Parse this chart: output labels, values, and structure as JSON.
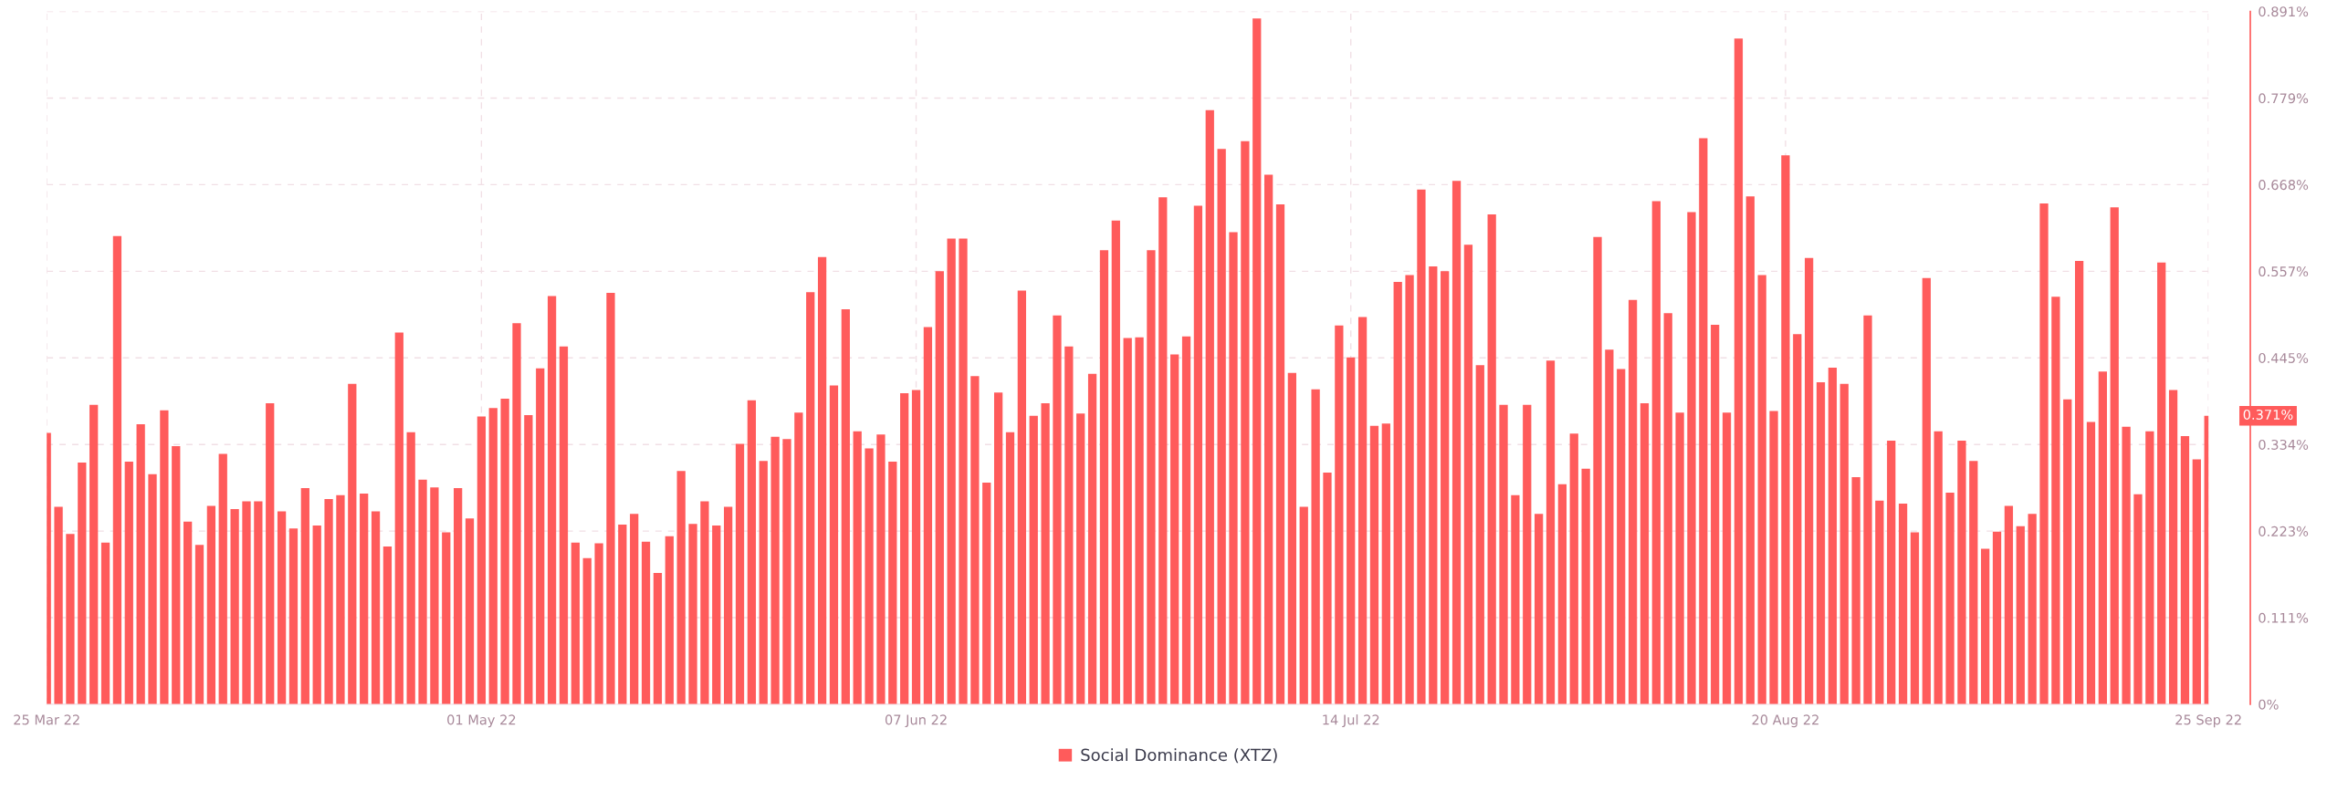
{
  "chart_data": {
    "type": "bar",
    "x": [
      "2022-03-25",
      "2022-03-26",
      "2022-03-27",
      "2022-03-28",
      "2022-03-29",
      "2022-03-30",
      "2022-03-31",
      "2022-04-01",
      "2022-04-02",
      "2022-04-03",
      "2022-04-04",
      "2022-04-05",
      "2022-04-06",
      "2022-04-07",
      "2022-04-08",
      "2022-04-09",
      "2022-04-10",
      "2022-04-11",
      "2022-04-12",
      "2022-04-13",
      "2022-04-14",
      "2022-04-15",
      "2022-04-16",
      "2022-04-17",
      "2022-04-18",
      "2022-04-19",
      "2022-04-20",
      "2022-04-21",
      "2022-04-22",
      "2022-04-23",
      "2022-04-24",
      "2022-04-25",
      "2022-04-26",
      "2022-04-27",
      "2022-04-28",
      "2022-04-29",
      "2022-04-30",
      "2022-05-01",
      "2022-05-02",
      "2022-05-03",
      "2022-05-04",
      "2022-05-05",
      "2022-05-06",
      "2022-05-07",
      "2022-05-08",
      "2022-05-09",
      "2022-05-10",
      "2022-05-11",
      "2022-05-12",
      "2022-05-13",
      "2022-05-14",
      "2022-05-15",
      "2022-05-16",
      "2022-05-17",
      "2022-05-18",
      "2022-05-19",
      "2022-05-20",
      "2022-05-21",
      "2022-05-22",
      "2022-05-23",
      "2022-05-24",
      "2022-05-25",
      "2022-05-26",
      "2022-05-27",
      "2022-05-28",
      "2022-05-29",
      "2022-05-30",
      "2022-05-31",
      "2022-06-01",
      "2022-06-02",
      "2022-06-03",
      "2022-06-04",
      "2022-06-05",
      "2022-06-06",
      "2022-06-07",
      "2022-06-08",
      "2022-06-09",
      "2022-06-10",
      "2022-06-11",
      "2022-06-12",
      "2022-06-13",
      "2022-06-14",
      "2022-06-15",
      "2022-06-16",
      "2022-06-17",
      "2022-06-18",
      "2022-06-19",
      "2022-06-20",
      "2022-06-21",
      "2022-06-22",
      "2022-06-23",
      "2022-06-24",
      "2022-06-25",
      "2022-06-26",
      "2022-06-27",
      "2022-06-28",
      "2022-06-29",
      "2022-06-30",
      "2022-07-01",
      "2022-07-02",
      "2022-07-03",
      "2022-07-04",
      "2022-07-05",
      "2022-07-06",
      "2022-07-07",
      "2022-07-08",
      "2022-07-09",
      "2022-07-10",
      "2022-07-11",
      "2022-07-12",
      "2022-07-13",
      "2022-07-14",
      "2022-07-15",
      "2022-07-16",
      "2022-07-17",
      "2022-07-18",
      "2022-07-19",
      "2022-07-20",
      "2022-07-21",
      "2022-07-22",
      "2022-07-23",
      "2022-07-24",
      "2022-07-25",
      "2022-07-26",
      "2022-07-27",
      "2022-07-28",
      "2022-07-29",
      "2022-07-30",
      "2022-07-31",
      "2022-08-01",
      "2022-08-02",
      "2022-08-03",
      "2022-08-04",
      "2022-08-05",
      "2022-08-06",
      "2022-08-07",
      "2022-08-08",
      "2022-08-09",
      "2022-08-10",
      "2022-08-11",
      "2022-08-12",
      "2022-08-13",
      "2022-08-14",
      "2022-08-15",
      "2022-08-16",
      "2022-08-17",
      "2022-08-18",
      "2022-08-19",
      "2022-08-20",
      "2022-08-21",
      "2022-08-22",
      "2022-08-23",
      "2022-08-24",
      "2022-08-25",
      "2022-08-26",
      "2022-08-27",
      "2022-08-28",
      "2022-08-29",
      "2022-08-30",
      "2022-08-31",
      "2022-09-01",
      "2022-09-02",
      "2022-09-03",
      "2022-09-04",
      "2022-09-05",
      "2022-09-06",
      "2022-09-07",
      "2022-09-08",
      "2022-09-09",
      "2022-09-10",
      "2022-09-11",
      "2022-09-12",
      "2022-09-13",
      "2022-09-14",
      "2022-09-15",
      "2022-09-16",
      "2022-09-17",
      "2022-09-18",
      "2022-09-19",
      "2022-09-20",
      "2022-09-21",
      "2022-09-22",
      "2022-09-23",
      "2022-09-24",
      "2022-09-25"
    ],
    "series": [
      {
        "name": "Social Dominance (XTZ)",
        "color": "#ff5b5b",
        "values": [
          0.349,
          0.254,
          0.219,
          0.311,
          0.385,
          0.208,
          0.602,
          0.312,
          0.36,
          0.296,
          0.378,
          0.332,
          0.235,
          0.205,
          0.255,
          0.322,
          0.251,
          0.261,
          0.261,
          0.387,
          0.248,
          0.226,
          0.278,
          0.23,
          0.264,
          0.269,
          0.412,
          0.271,
          0.248,
          0.203,
          0.478,
          0.35,
          0.289,
          0.279,
          0.221,
          0.278,
          0.239,
          0.37,
          0.381,
          0.393,
          0.49,
          0.372,
          0.432,
          0.525,
          0.46,
          0.208,
          0.188,
          0.207,
          0.529,
          0.231,
          0.245,
          0.209,
          0.169,
          0.216,
          0.3,
          0.232,
          0.261,
          0.23,
          0.254,
          0.335,
          0.391,
          0.313,
          0.344,
          0.341,
          0.375,
          0.53,
          0.575,
          0.41,
          0.508,
          0.351,
          0.329,
          0.347,
          0.312,
          0.4,
          0.404,
          0.485,
          0.557,
          0.599,
          0.599,
          0.422,
          0.285,
          0.401,
          0.35,
          0.532,
          0.371,
          0.387,
          0.5,
          0.46,
          0.374,
          0.425,
          0.584,
          0.622,
          0.471,
          0.472,
          0.584,
          0.652,
          0.45,
          0.473,
          0.641,
          0.764,
          0.714,
          0.607,
          0.724,
          0.882,
          0.681,
          0.643,
          0.426,
          0.254,
          0.405,
          0.298,
          0.487,
          0.446,
          0.498,
          0.358,
          0.361,
          0.543,
          0.552,
          0.662,
          0.563,
          0.557,
          0.673,
          0.591,
          0.436,
          0.63,
          0.385,
          0.269,
          0.385,
          0.245,
          0.442,
          0.283,
          0.348,
          0.303,
          0.601,
          0.456,
          0.431,
          0.52,
          0.387,
          0.647,
          0.503,
          0.375,
          0.633,
          0.728,
          0.488,
          0.375,
          0.856,
          0.653,
          0.552,
          0.377,
          0.706,
          0.476,
          0.574,
          0.414,
          0.433,
          0.412,
          0.292,
          0.5,
          0.262,
          0.339,
          0.258,
          0.221,
          0.548,
          0.351,
          0.272,
          0.339,
          0.313,
          0.2,
          0.222,
          0.255,
          0.229,
          0.245,
          0.644,
          0.524,
          0.392,
          0.57,
          0.363,
          0.428,
          0.639,
          0.357,
          0.27,
          0.351,
          0.568,
          0.404,
          0.345,
          0.315,
          0.371
        ]
      }
    ],
    "xlim": [
      "2022-03-25",
      "2022-09-25"
    ],
    "xticks": [
      {
        "value": "2022-03-25",
        "label": "25 Mar 22"
      },
      {
        "value": "2022-05-01",
        "label": "01 May 22"
      },
      {
        "value": "2022-06-07",
        "label": "07 Jun 22"
      },
      {
        "value": "2022-07-14",
        "label": "14 Jul 22"
      },
      {
        "value": "2022-08-20",
        "label": "20 Aug 22"
      },
      {
        "value": "2022-09-25",
        "label": "25 Sep 22"
      }
    ],
    "ylim": [
      0,
      0.891
    ],
    "yticks": [
      {
        "value": 0,
        "label": "0%"
      },
      {
        "value": 0.1114,
        "label": "0.111%"
      },
      {
        "value": 0.2227,
        "label": "0.223%"
      },
      {
        "value": 0.3341,
        "label": "0.334%"
      },
      {
        "value": 0.4455,
        "label": "0.445%"
      },
      {
        "value": 0.5568,
        "label": "0.557%"
      },
      {
        "value": 0.6682,
        "label": "0.668%"
      },
      {
        "value": 0.7795,
        "label": "0.779%"
      },
      {
        "value": 0.891,
        "label": "0.891%"
      }
    ],
    "grid": true,
    "legend": "bottom",
    "annotations": [
      {
        "text": "0.371%",
        "x": "2022-09-25",
        "y": 0.371
      }
    ]
  }
}
